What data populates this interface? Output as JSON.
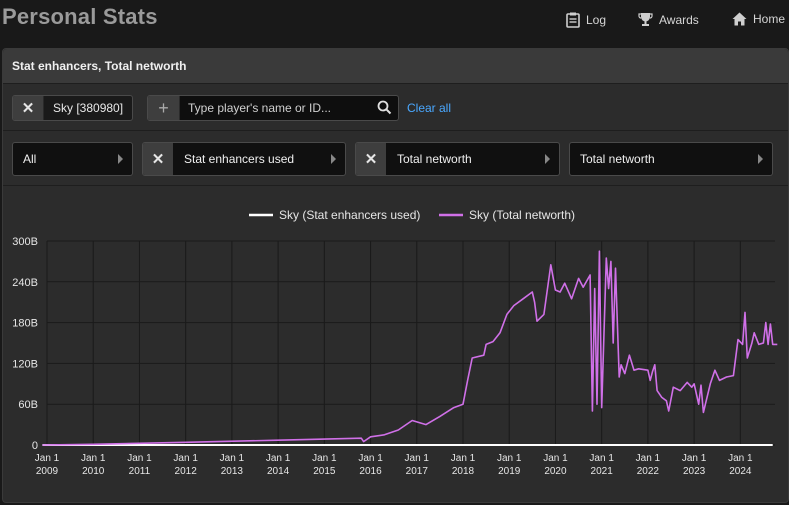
{
  "header": {
    "title": "Personal Stats",
    "nav": [
      {
        "label": "Log",
        "icon": "log-icon"
      },
      {
        "label": "Awards",
        "icon": "trophy-icon"
      },
      {
        "label": "Home",
        "icon": "home-icon"
      }
    ]
  },
  "panel": {
    "title": "Stat enhancers, Total networth"
  },
  "players": {
    "selected": [
      {
        "label": "Sky [380980]"
      }
    ],
    "search_placeholder": "Type player's name or ID...",
    "clear_label": "Clear all"
  },
  "filters": [
    {
      "label": "All",
      "removable": false
    },
    {
      "label": "Stat enhancers used",
      "removable": true
    },
    {
      "label": "Total networth",
      "removable": true
    },
    {
      "label": "Total networth",
      "removable": false
    }
  ],
  "colors": {
    "series_white": "#ffffff",
    "series_purple": "#d070e8",
    "link": "#4aa8ff"
  },
  "chart_data": {
    "type": "line",
    "legend_position": "top-center",
    "grid": true,
    "ylim": [
      0,
      300
    ],
    "y_ticks": [
      "0",
      "60B",
      "120B",
      "180B",
      "240B",
      "300B"
    ],
    "x_ticks": [
      {
        "line1": "Jan 1",
        "line2": "2009",
        "x": 2009.0
      },
      {
        "line1": "Jan 1",
        "line2": "2010",
        "x": 2010.0
      },
      {
        "line1": "Jan 1",
        "line2": "2011",
        "x": 2011.0
      },
      {
        "line1": "Jan 1",
        "line2": "2012",
        "x": 2012.0
      },
      {
        "line1": "Jan 1",
        "line2": "2013",
        "x": 2013.0
      },
      {
        "line1": "Jan 1",
        "line2": "2014",
        "x": 2014.0
      },
      {
        "line1": "Jan 1",
        "line2": "2015",
        "x": 2015.0
      },
      {
        "line1": "Jan 1",
        "line2": "2016",
        "x": 2016.0
      },
      {
        "line1": "Jan 1",
        "line2": "2017",
        "x": 2017.0
      },
      {
        "line1": "Jan 1",
        "line2": "2018",
        "x": 2018.0
      },
      {
        "line1": "Jan 1",
        "line2": "2019",
        "x": 2019.0
      },
      {
        "line1": "Jan 1",
        "line2": "2020",
        "x": 2020.0
      },
      {
        "line1": "Jan 1",
        "line2": "2021",
        "x": 2021.0
      },
      {
        "line1": "Jan 1",
        "line2": "2022",
        "x": 2022.0
      },
      {
        "line1": "Jan 1",
        "line2": "2023",
        "x": 2023.0
      },
      {
        "line1": "Jan 1",
        "line2": "2024",
        "x": 2024.0
      }
    ],
    "series": [
      {
        "name": "Sky (Stat enhancers used)",
        "color": "#ffffff",
        "points": [
          [
            2008.9,
            0
          ],
          [
            2024.7,
            0
          ]
        ]
      },
      {
        "name": "Sky (Total networth)",
        "color": "#d070e8",
        "points": [
          [
            2008.9,
            0
          ],
          [
            2010.0,
            1
          ],
          [
            2012.0,
            4
          ],
          [
            2014.0,
            7
          ],
          [
            2015.8,
            10
          ],
          [
            2015.85,
            5
          ],
          [
            2016.0,
            12
          ],
          [
            2016.3,
            15
          ],
          [
            2016.6,
            22
          ],
          [
            2016.9,
            36
          ],
          [
            2017.2,
            30
          ],
          [
            2017.5,
            42
          ],
          [
            2017.8,
            55
          ],
          [
            2018.0,
            60
          ],
          [
            2018.1,
            95
          ],
          [
            2018.2,
            128
          ],
          [
            2018.45,
            132
          ],
          [
            2018.5,
            148
          ],
          [
            2018.65,
            152
          ],
          [
            2018.8,
            165
          ],
          [
            2018.95,
            192
          ],
          [
            2019.1,
            205
          ],
          [
            2019.3,
            215
          ],
          [
            2019.5,
            225
          ],
          [
            2019.55,
            210
          ],
          [
            2019.6,
            182
          ],
          [
            2019.75,
            192
          ],
          [
            2019.9,
            265
          ],
          [
            2020.0,
            228
          ],
          [
            2020.1,
            225
          ],
          [
            2020.2,
            238
          ],
          [
            2020.35,
            215
          ],
          [
            2020.5,
            245
          ],
          [
            2020.6,
            232
          ],
          [
            2020.75,
            250
          ],
          [
            2020.8,
            50
          ],
          [
            2020.85,
            230
          ],
          [
            2020.9,
            60
          ],
          [
            2020.95,
            285
          ],
          [
            2021.0,
            55
          ],
          [
            2021.1,
            275
          ],
          [
            2021.15,
            230
          ],
          [
            2021.2,
            270
          ],
          [
            2021.25,
            150
          ],
          [
            2021.3,
            260
          ],
          [
            2021.38,
            100
          ],
          [
            2021.42,
            118
          ],
          [
            2021.5,
            105
          ],
          [
            2021.6,
            132
          ],
          [
            2021.7,
            110
          ],
          [
            2021.8,
            112
          ],
          [
            2022.0,
            110
          ],
          [
            2022.05,
            95
          ],
          [
            2022.1,
            108
          ],
          [
            2022.15,
            118
          ],
          [
            2022.2,
            80
          ],
          [
            2022.3,
            70
          ],
          [
            2022.4,
            65
          ],
          [
            2022.45,
            50
          ],
          [
            2022.55,
            85
          ],
          [
            2022.7,
            80
          ],
          [
            2022.85,
            92
          ],
          [
            2022.95,
            85
          ],
          [
            2023.0,
            90
          ],
          [
            2023.1,
            60
          ],
          [
            2023.15,
            88
          ],
          [
            2023.2,
            48
          ],
          [
            2023.35,
            90
          ],
          [
            2023.45,
            110
          ],
          [
            2023.55,
            95
          ],
          [
            2023.7,
            100
          ],
          [
            2023.85,
            102
          ],
          [
            2023.95,
            155
          ],
          [
            2024.05,
            148
          ],
          [
            2024.1,
            195
          ],
          [
            2024.15,
            128
          ],
          [
            2024.25,
            150
          ],
          [
            2024.3,
            165
          ],
          [
            2024.4,
            148
          ],
          [
            2024.5,
            150
          ],
          [
            2024.55,
            180
          ],
          [
            2024.6,
            148
          ],
          [
            2024.65,
            178
          ],
          [
            2024.7,
            148
          ],
          [
            2024.8,
            148
          ]
        ]
      }
    ]
  }
}
